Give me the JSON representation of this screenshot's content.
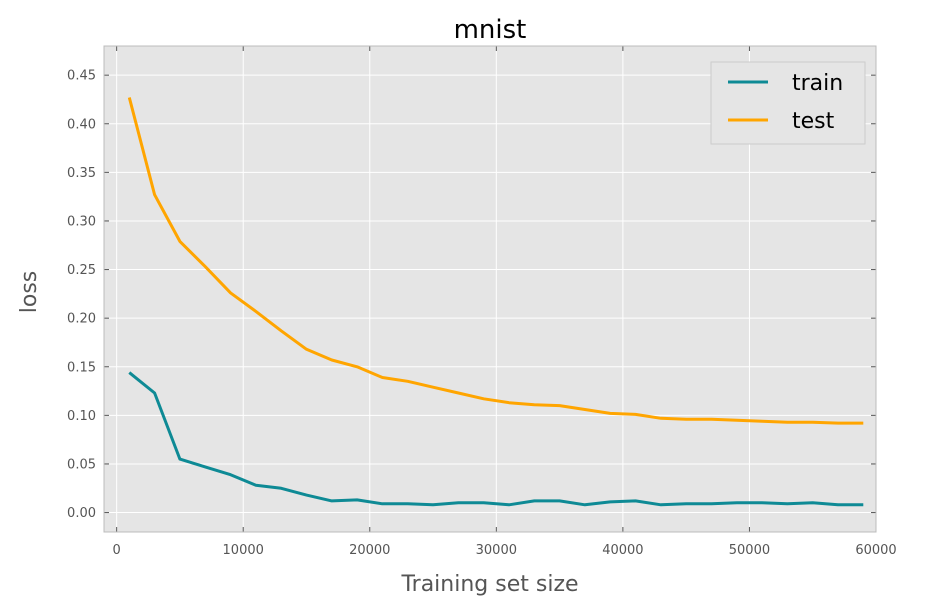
{
  "chart_data": {
    "type": "line",
    "title": "mnist",
    "xlabel": "Training set size",
    "ylabel": "loss",
    "xlim": [
      -1000,
      60000
    ],
    "ylim": [
      -0.02,
      0.48
    ],
    "xticks": [
      0,
      10000,
      20000,
      30000,
      40000,
      50000,
      60000
    ],
    "xtick_labels": [
      "0",
      "10000",
      "20000",
      "30000",
      "40000",
      "50000",
      "60000"
    ],
    "yticks": [
      0.0,
      0.05,
      0.1,
      0.15,
      0.2,
      0.25,
      0.3,
      0.35,
      0.4,
      0.45
    ],
    "ytick_labels": [
      "0.00",
      "0.05",
      "0.10",
      "0.15",
      "0.20",
      "0.25",
      "0.30",
      "0.35",
      "0.40",
      "0.45"
    ],
    "grid": true,
    "legend_position": "top-right",
    "x": [
      1000,
      3000,
      5000,
      7000,
      9000,
      11000,
      13000,
      15000,
      17000,
      19000,
      21000,
      23000,
      25000,
      27000,
      29000,
      31000,
      33000,
      35000,
      37000,
      39000,
      41000,
      43000,
      45000,
      47000,
      49000,
      51000,
      53000,
      55000,
      57000,
      59000
    ],
    "series": [
      {
        "name": "train",
        "color": "#0e8a95",
        "values": [
          0.144,
          0.123,
          0.055,
          0.047,
          0.039,
          0.028,
          0.025,
          0.018,
          0.012,
          0.013,
          0.009,
          0.009,
          0.008,
          0.01,
          0.01,
          0.008,
          0.012,
          0.012,
          0.008,
          0.011,
          0.012,
          0.008,
          0.009,
          0.009,
          0.01,
          0.01,
          0.009,
          0.01,
          0.008,
          0.008
        ]
      },
      {
        "name": "test",
        "color": "#ffa500",
        "values": [
          0.427,
          0.327,
          0.279,
          0.253,
          0.226,
          0.207,
          0.187,
          0.168,
          0.157,
          0.15,
          0.139,
          0.135,
          0.129,
          0.123,
          0.117,
          0.113,
          0.111,
          0.11,
          0.106,
          0.102,
          0.101,
          0.097,
          0.096,
          0.096,
          0.095,
          0.094,
          0.093,
          0.093,
          0.092,
          0.092
        ]
      }
    ]
  }
}
